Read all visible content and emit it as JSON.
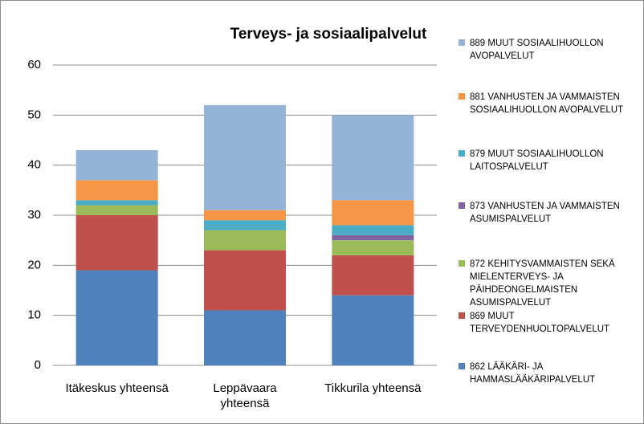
{
  "chart_data": {
    "type": "bar",
    "stacked": true,
    "title": "Terveys- ja sosiaalipalvelut",
    "categories": [
      "Itäkeskus yhteensä",
      "Leppävaara yhteensä",
      "Tikkurila yhteensä"
    ],
    "series": [
      {
        "name": "862 LÄÄKÄRI- JA HAMMASLÄÄKÄRIPALVELUT",
        "color": "#4f81bd",
        "values": [
          19,
          11,
          14
        ]
      },
      {
        "name": "869 MUUT TERVEYDENHUOLTOPALVELUT",
        "color": "#c0504d",
        "values": [
          11,
          12,
          8
        ]
      },
      {
        "name": "872 KEHITYSVAMMAISTEN SEKÄ MIELENTERVEYS- JA PÄIHDEONGELMAISTEN ASUMISPALVELUT",
        "color": "#9bbb59",
        "values": [
          2,
          4,
          3
        ]
      },
      {
        "name": "873 VANHUSTEN JA VAMMAISTEN ASUMISPALVELUT",
        "color": "#8064a2",
        "values": [
          0,
          0,
          1
        ]
      },
      {
        "name": "879 MUUT SOSIAALIHUOLLON LAITOSPALVELUT",
        "color": "#4bacc6",
        "values": [
          1,
          2,
          2
        ]
      },
      {
        "name": "881 VANHUSTEN JA VAMMAISTEN SOSIAALIHUOLLON AVOPALVELUT",
        "color": "#f79646",
        "values": [
          4,
          2,
          5
        ]
      },
      {
        "name": "889 MUUT SOSIAALIHUOLLON AVOPALVELUT",
        "color": "#95b3d7",
        "values": [
          6,
          21,
          17
        ]
      }
    ],
    "ylim": [
      0,
      60
    ],
    "yticks": [
      0,
      10,
      20,
      30,
      40,
      50,
      60
    ],
    "grid": true,
    "legend": "right"
  }
}
